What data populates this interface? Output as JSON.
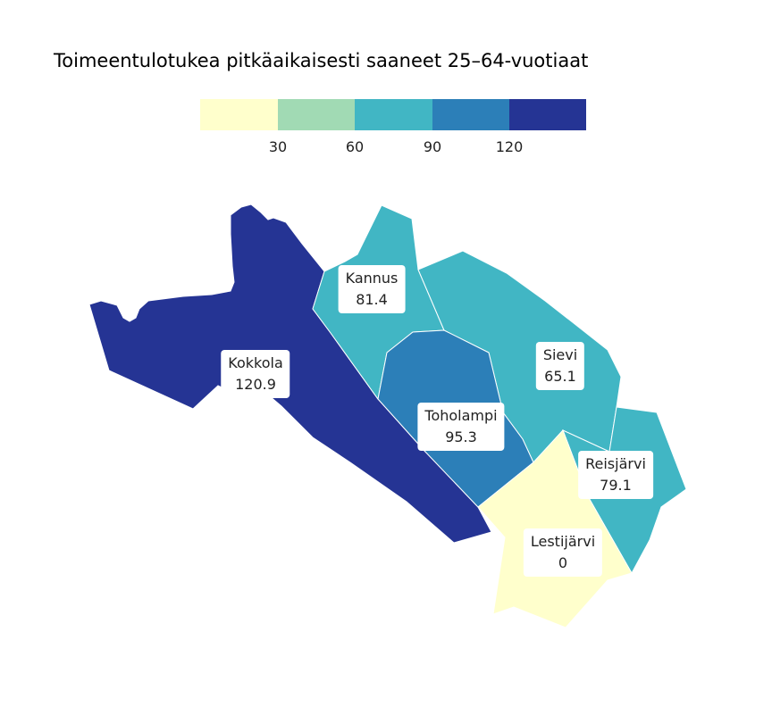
{
  "title": "Toimeentulotukea pitkäaikaisesti saaneet 25–64-vuotiaat",
  "legend": {
    "breaks": [
      "30",
      "60",
      "90",
      "120"
    ],
    "colors": [
      "#ffffcc",
      "#a1dab4",
      "#41b6c4",
      "#2c7fb8",
      "#253494"
    ]
  },
  "regions": [
    {
      "id": "kokkola",
      "name": "Kokkola",
      "value": "120.9",
      "color": "#253494"
    },
    {
      "id": "kannus",
      "name": "Kannus",
      "value": "81.4",
      "color": "#41b6c4"
    },
    {
      "id": "sievi",
      "name": "Sievi",
      "value": "65.1",
      "color": "#41b6c4"
    },
    {
      "id": "toholampi",
      "name": "Toholampi",
      "value": "95.3",
      "color": "#2c7fb8"
    },
    {
      "id": "reisjarvi",
      "name": "Reisjärvi",
      "value": "79.1",
      "color": "#41b6c4"
    },
    {
      "id": "lestijarvi",
      "name": "Lestijärvi",
      "value": "0",
      "color": "#ffffcc"
    }
  ]
}
